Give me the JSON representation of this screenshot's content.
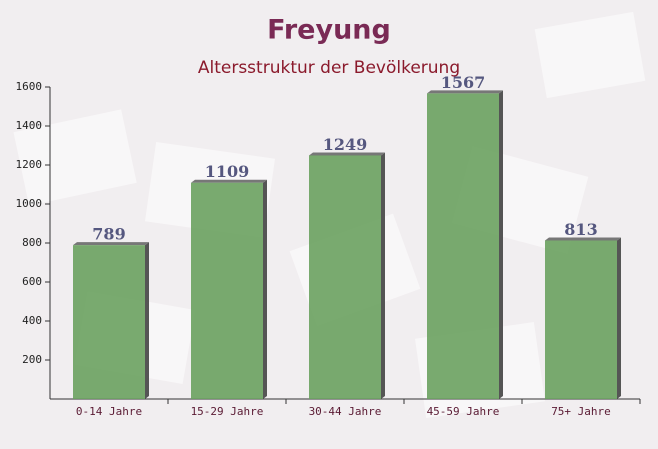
{
  "chart_data": {
    "type": "bar",
    "title": "Freyung",
    "subtitle": "Altersstruktur der Bevölkerung",
    "categories": [
      "0-14 Jahre",
      "15-29 Jahre",
      "30-44 Jahre",
      "45-59 Jahre",
      "75+ Jahre"
    ],
    "values": [
      789,
      1109,
      1249,
      1567,
      813
    ],
    "color": "#6aa15f",
    "ylim": [
      0,
      1600
    ],
    "yticks": [
      200,
      400,
      600,
      800,
      1000,
      1200,
      1400,
      1600
    ],
    "grid": false
  }
}
